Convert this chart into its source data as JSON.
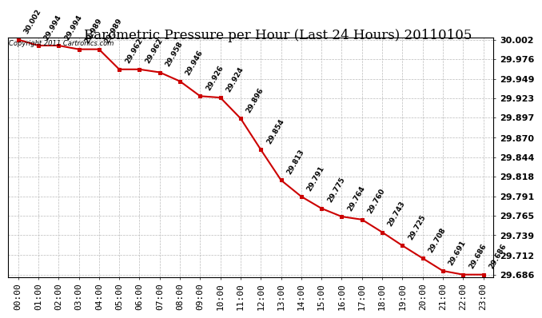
{
  "title": "Barometric Pressure per Hour (Last 24 Hours) 20110105",
  "copyright": "Copyright 2011 Cartronics.com",
  "hours": [
    "00:00",
    "01:00",
    "02:00",
    "03:00",
    "04:00",
    "05:00",
    "06:00",
    "07:00",
    "08:00",
    "09:00",
    "10:00",
    "11:00",
    "12:00",
    "13:00",
    "14:00",
    "15:00",
    "16:00",
    "17:00",
    "18:00",
    "19:00",
    "20:00",
    "21:00",
    "22:00",
    "23:00"
  ],
  "values": [
    30.002,
    29.994,
    29.994,
    29.989,
    29.989,
    29.962,
    29.962,
    29.958,
    29.946,
    29.926,
    29.924,
    29.896,
    29.854,
    29.813,
    29.791,
    29.775,
    29.764,
    29.76,
    29.743,
    29.725,
    29.708,
    29.691,
    29.686,
    29.686
  ],
  "line_color": "#cc0000",
  "marker_color": "#cc0000",
  "bg_color": "#ffffff",
  "grid_color": "#bbbbbb",
  "ylim_min": 29.686,
  "ylim_max": 30.002,
  "yticks": [
    29.686,
    29.712,
    29.739,
    29.765,
    29.791,
    29.818,
    29.844,
    29.87,
    29.897,
    29.923,
    29.949,
    29.976,
    30.002
  ],
  "title_fontsize": 12,
  "tick_fontsize": 8,
  "annotation_fontsize": 6.5
}
